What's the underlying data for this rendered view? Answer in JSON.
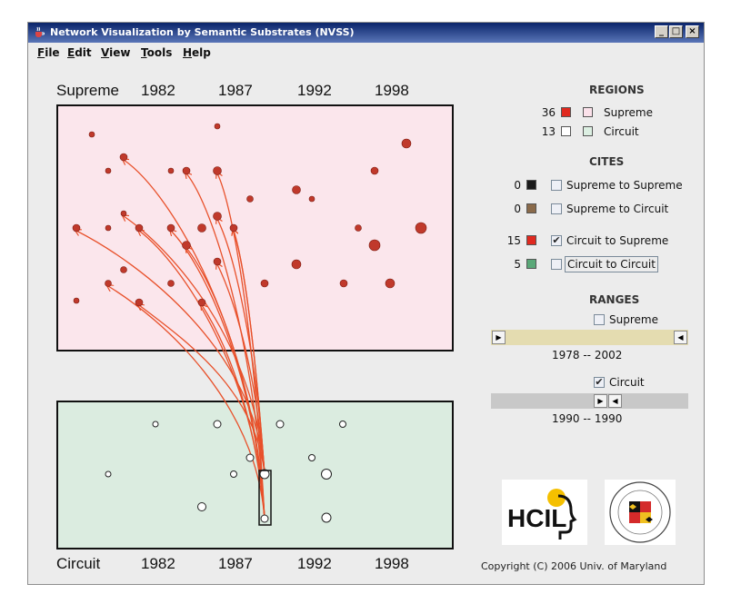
{
  "window": {
    "title": "Network Visualization by Semantic Substrates (NVSS)",
    "controls": [
      "_",
      "□",
      "×"
    ]
  },
  "menu": [
    {
      "label": "File",
      "mnemonic": "F",
      "rest": "ile"
    },
    {
      "label": "Edit",
      "mnemonic": "E",
      "rest": "dit"
    },
    {
      "label": "View",
      "mnemonic": "V",
      "rest": "iew"
    },
    {
      "label": "Tools",
      "mnemonic": "T",
      "rest": "ools"
    },
    {
      "label": "Help",
      "mnemonic": "H",
      "rest": "elp"
    }
  ],
  "plot": {
    "top_axis": {
      "name": "Supreme",
      "years": [
        "1982",
        "1987",
        "1992",
        "1998"
      ]
    },
    "bottom_axis": {
      "name": "Circuit",
      "years": [
        "1982",
        "1987",
        "1992",
        "1998"
      ]
    },
    "colors": {
      "supreme_fill": "#fbe6ec",
      "circuit_fill": "#dbece0",
      "supreme_node": "#c0392b",
      "circuit_node": "#ffffff",
      "link": "#e8502a"
    }
  },
  "regions": {
    "title": "REGIONS",
    "items": [
      {
        "count": "36",
        "node_color": "#e0291f",
        "region_color": "#fbe1ea",
        "label": "Supreme"
      },
      {
        "count": "13",
        "node_color": "#ffffff",
        "region_color": "#dcefe2",
        "label": "Circuit"
      }
    ]
  },
  "cites": {
    "title": "CITES",
    "items": [
      {
        "count": "0",
        "color": "#1a1a1a",
        "label": "Supreme to Supreme",
        "checked": false
      },
      {
        "count": "0",
        "color": "#8a6a4a",
        "label": "Supreme to Circuit",
        "checked": false
      },
      {
        "count": "15",
        "color": "#e0291f",
        "label": "Circuit to Supreme",
        "checked": true
      },
      {
        "count": "5",
        "color": "#5aa878",
        "label": "Circuit to Circuit",
        "checked": false
      }
    ]
  },
  "ranges": {
    "title": "RANGES",
    "supreme": {
      "label": "Supreme",
      "checked": false,
      "range_text": "1978 -- 2002",
      "color": "#e4dcb0"
    },
    "circuit": {
      "label": "Circuit",
      "checked": true,
      "range_text": "1990 -- 1990",
      "color": "#c8c8c8"
    }
  },
  "logos": {
    "hcil": "HCIL",
    "umd": "UNIVERSITY OF MARYLAND"
  },
  "copyright": "Copyright (C) 2006   Univ. of Maryland"
}
